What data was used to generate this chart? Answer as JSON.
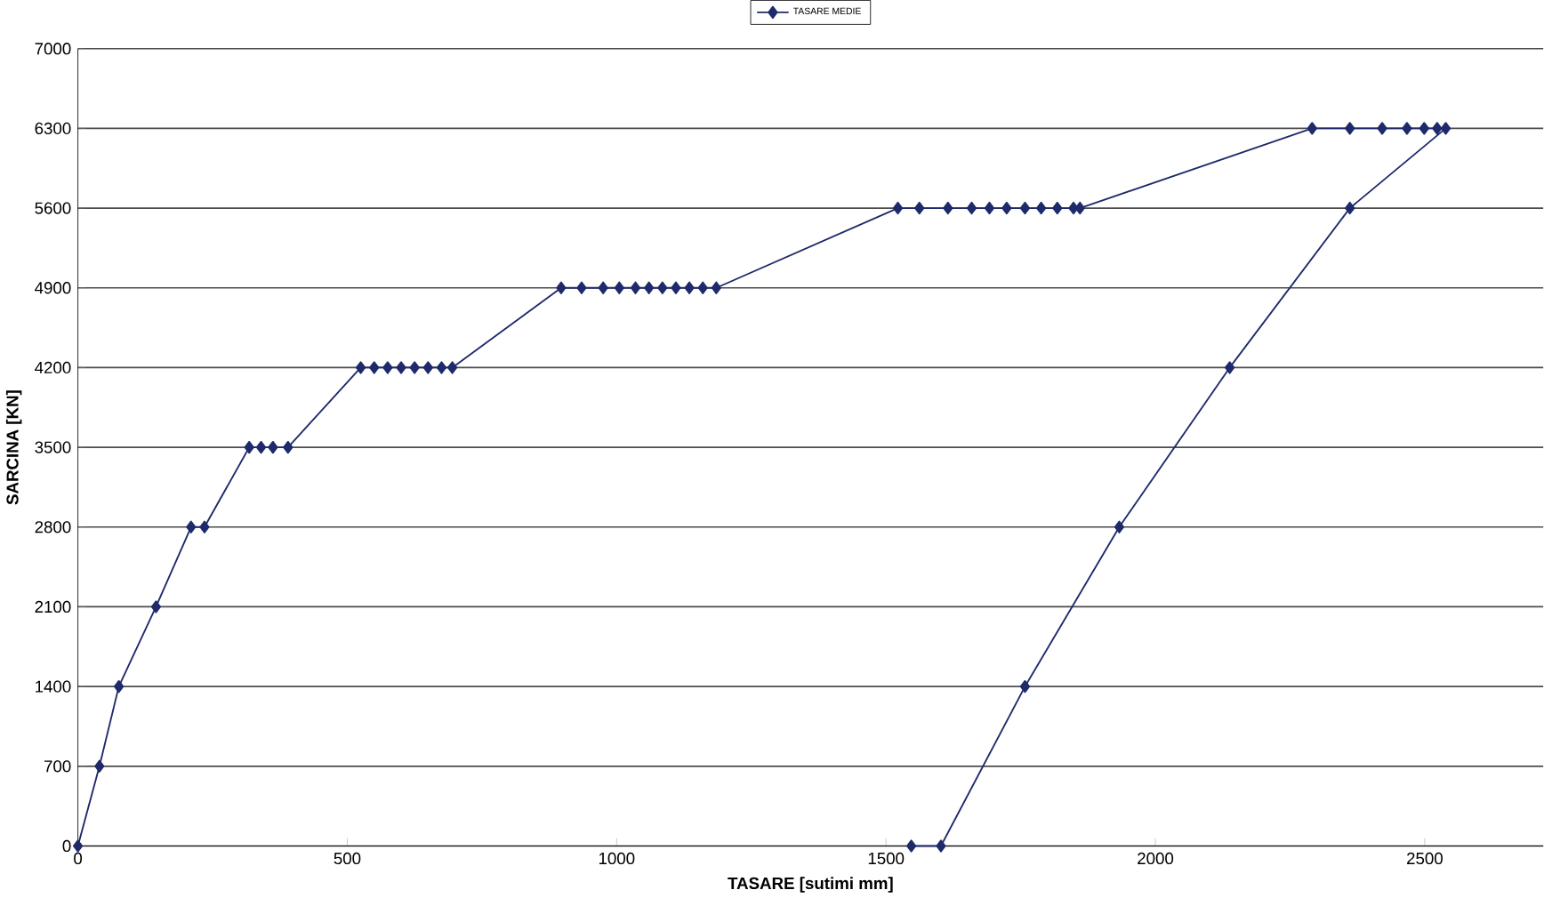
{
  "chart_data": {
    "type": "line",
    "xlabel": "TASARE [sutimi mm]",
    "ylabel": "SARCINA  [KN]",
    "x": [
      0,
      40,
      76,
      145,
      210,
      235,
      318,
      340,
      362,
      390,
      525,
      550,
      575,
      600,
      625,
      650,
      675,
      695,
      897,
      935,
      975,
      1005,
      1035,
      1060,
      1085,
      1110,
      1135,
      1160,
      1185,
      1522,
      1562,
      1615,
      1659,
      1692,
      1724,
      1758,
      1788,
      1818,
      1848,
      1860,
      2291,
      2361,
      2421,
      2467,
      2499,
      2523,
      2539,
      2361,
      2138,
      1933,
      1758,
      1602,
      1547
    ],
    "series": [
      {
        "name": "TASARE MEDIE",
        "color": "#1f2a6b",
        "values": [
          0,
          700,
          1400,
          2100,
          2800,
          2800,
          3500,
          3500,
          3500,
          3500,
          4200,
          4200,
          4200,
          4200,
          4200,
          4200,
          4200,
          4200,
          4900,
          4900,
          4900,
          4900,
          4900,
          4900,
          4900,
          4900,
          4900,
          4900,
          4900,
          5600,
          5600,
          5600,
          5600,
          5600,
          5600,
          5600,
          5600,
          5600,
          5600,
          5600,
          6300,
          6300,
          6300,
          6300,
          6300,
          6300,
          6300,
          5600,
          4200,
          2800,
          1400,
          0,
          0
        ]
      }
    ],
    "xlim": [
      0,
      2720
    ],
    "ylim": [
      0,
      7000
    ],
    "xticks": [
      0,
      500,
      1000,
      1500,
      2000,
      2500
    ],
    "yticks": [
      0,
      700,
      1400,
      2100,
      2800,
      3500,
      4200,
      4900,
      5600,
      6300,
      7000
    ],
    "grid": "y",
    "legend": "top",
    "marker": "diamond",
    "line_style": "solid"
  }
}
